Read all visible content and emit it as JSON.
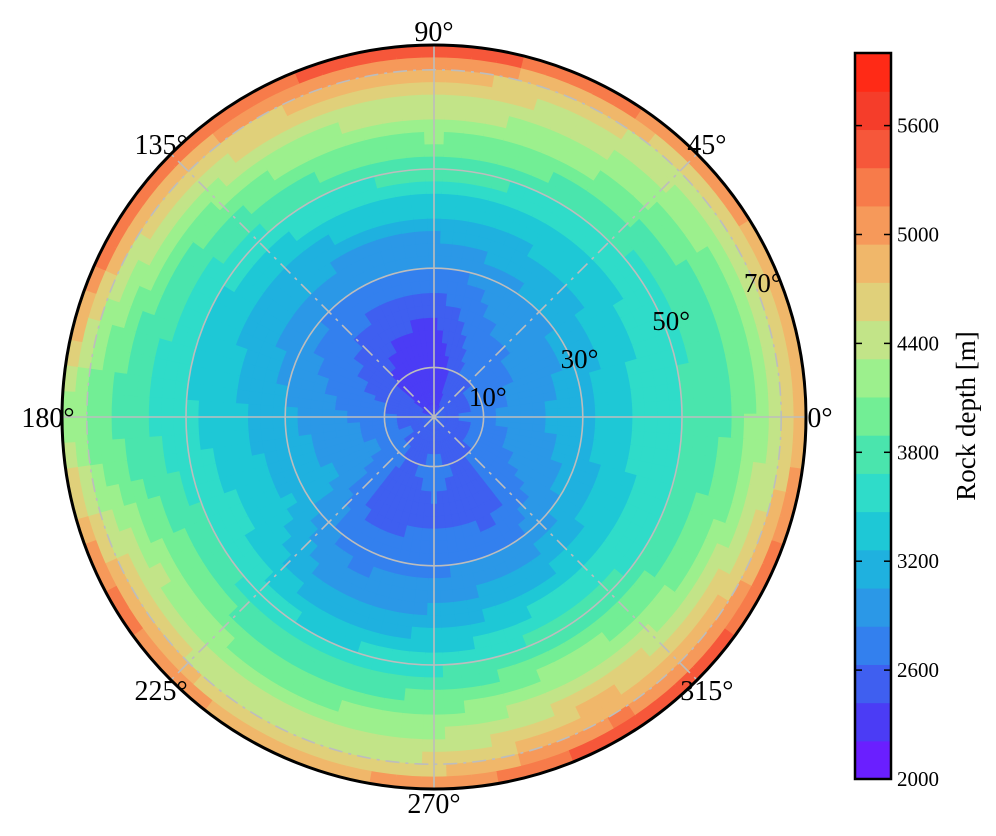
{
  "chart_data": {
    "type": "heatmap",
    "projection": "polar",
    "colorbar": {
      "label": "Rock depth [m]",
      "range": [
        2000,
        6000
      ],
      "ticks": [
        "2000",
        "2600",
        "3200",
        "3800",
        "4400",
        "5000",
        "5600"
      ],
      "tick_values": [
        2000,
        2600,
        3200,
        3800,
        4400,
        5000,
        5600
      ],
      "colors": [
        "#6a1fff",
        "#4b3cf5",
        "#3f5ff0",
        "#3380ee",
        "#2b98e7",
        "#1fb1df",
        "#1ec8d6",
        "#2fdcc9",
        "#4ae5ad",
        "#72ee95",
        "#9cf08d",
        "#c2e488",
        "#e0d07a",
        "#f0b76a",
        "#f6995a",
        "#f77b4a",
        "#f6573a",
        "#f53d2a",
        "#ff2a16"
      ]
    },
    "azimuth_labels": [
      "0°",
      "45°",
      "90°",
      "135°",
      "180°",
      "225°",
      "270°",
      "315°"
    ],
    "azimuth_values": [
      0,
      45,
      90,
      135,
      180,
      225,
      270,
      315
    ],
    "radial_labels": [
      "10°",
      "30°",
      "50°",
      "70°"
    ],
    "radial_values": [
      10,
      30,
      50,
      70
    ],
    "radial_range": [
      0,
      75
    ],
    "grid": true,
    "field": {
      "description_free": true,
      "azimuth_step_deg": 30,
      "radius_steps": [
        0,
        10,
        20,
        30,
        40,
        50,
        60,
        70,
        75
      ],
      "values_by_azimuth": [
        {
          "az": 0,
          "depth": [
            2400,
            2800,
            3000,
            3200,
            3500,
            3700,
            3900,
            4400,
            5000
          ]
        },
        {
          "az": 30,
          "depth": [
            2400,
            2700,
            2900,
            3100,
            3400,
            3600,
            3900,
            4400,
            5100
          ]
        },
        {
          "az": 60,
          "depth": [
            2400,
            2600,
            2800,
            3000,
            3300,
            3700,
            4200,
            4600,
            5400
          ]
        },
        {
          "az": 90,
          "depth": [
            2300,
            2200,
            2400,
            2800,
            3200,
            3800,
            4300,
            4900,
            5700
          ]
        },
        {
          "az": 120,
          "depth": [
            2400,
            2300,
            2500,
            2800,
            3200,
            3700,
            4200,
            4800,
            5500
          ]
        },
        {
          "az": 150,
          "depth": [
            2400,
            2500,
            2700,
            2900,
            3200,
            3500,
            3900,
            4600,
            5600
          ]
        },
        {
          "az": 180,
          "depth": [
            2400,
            2700,
            2900,
            3100,
            3300,
            3500,
            3700,
            4000,
            4300
          ]
        },
        {
          "az": 210,
          "depth": [
            2400,
            2800,
            3000,
            3200,
            3400,
            3700,
            4100,
            4700,
            5400
          ]
        },
        {
          "az": 240,
          "depth": [
            2400,
            2600,
            2500,
            2700,
            3000,
            3500,
            4000,
            4500,
            5000
          ]
        },
        {
          "az": 270,
          "depth": [
            2400,
            2700,
            2600,
            2800,
            3100,
            3600,
            4100,
            4600,
            5100
          ]
        },
        {
          "az": 300,
          "depth": [
            2400,
            2600,
            2500,
            2800,
            3300,
            3800,
            4400,
            5000,
            5700
          ]
        },
        {
          "az": 330,
          "depth": [
            2400,
            2700,
            2900,
            3100,
            3400,
            3700,
            4100,
            4800,
            5500
          ]
        }
      ]
    }
  }
}
